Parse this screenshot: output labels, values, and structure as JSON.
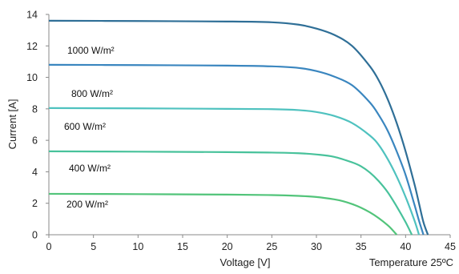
{
  "chart_data": {
    "type": "line",
    "title": "",
    "xlabel": "Voltage [V]",
    "ylabel": "Current [A]",
    "xlim": [
      0,
      45
    ],
    "ylim": [
      0,
      14
    ],
    "xticks": [
      "0",
      "5",
      "10",
      "15",
      "20",
      "25",
      "30",
      "35",
      "40",
      "45"
    ],
    "yticks": [
      "0",
      "2",
      "4",
      "6",
      "8",
      "10",
      "12",
      "14"
    ],
    "grid": false,
    "annotations": [
      {
        "text": "Temperature 25ºC",
        "placement": "bottom-right"
      }
    ],
    "series": [
      {
        "name": "1000 W/m²",
        "color": "#2f6f97",
        "isc": 13.6,
        "voc": 42.5,
        "x": [
          0,
          10,
          20,
          25,
          28,
          30,
          32,
          34,
          36,
          37,
          38,
          39,
          40,
          41,
          41.5,
          42,
          42.5
        ],
        "y": [
          13.6,
          13.58,
          13.55,
          13.5,
          13.35,
          13.1,
          12.7,
          12.0,
          10.7,
          9.8,
          8.6,
          7.1,
          5.3,
          3.2,
          2.0,
          0.8,
          0
        ]
      },
      {
        "name": "800 W/m²",
        "color": "#3a86bf",
        "isc": 10.8,
        "voc": 42.0,
        "x": [
          0,
          10,
          20,
          25,
          28,
          30,
          32,
          34,
          36,
          37,
          38,
          39,
          40,
          41,
          41.5,
          42
        ],
        "y": [
          10.8,
          10.78,
          10.75,
          10.7,
          10.6,
          10.4,
          10.05,
          9.5,
          8.4,
          7.6,
          6.6,
          5.3,
          3.8,
          1.9,
          0.9,
          0
        ]
      },
      {
        "name": "600 W/m²",
        "color": "#4fc2bf",
        "isc": 8.05,
        "voc": 41.5,
        "x": [
          0,
          10,
          20,
          25,
          28,
          30,
          32,
          34,
          36,
          37,
          38,
          39,
          40,
          41,
          41.5
        ],
        "y": [
          8.05,
          8.03,
          8.0,
          7.98,
          7.92,
          7.8,
          7.55,
          7.1,
          6.3,
          5.7,
          4.8,
          3.7,
          2.4,
          0.9,
          0
        ]
      },
      {
        "name": "400 W/m²",
        "color": "#48c29b",
        "isc": 5.3,
        "voc": 40.7,
        "x": [
          0,
          10,
          20,
          25,
          28,
          30,
          32,
          34,
          35,
          36,
          37,
          38,
          39,
          40,
          40.7
        ],
        "y": [
          5.3,
          5.28,
          5.25,
          5.22,
          5.18,
          5.1,
          4.95,
          4.6,
          4.35,
          3.95,
          3.4,
          2.7,
          1.8,
          0.8,
          0
        ]
      },
      {
        "name": "200 W/m²",
        "color": "#52c47a",
        "isc": 2.6,
        "voc": 39.0,
        "x": [
          0,
          10,
          20,
          25,
          28,
          30,
          32,
          33,
          34,
          35,
          36,
          37,
          38,
          38.5,
          39
        ],
        "y": [
          2.6,
          2.58,
          2.55,
          2.52,
          2.47,
          2.4,
          2.25,
          2.13,
          1.95,
          1.72,
          1.42,
          1.05,
          0.6,
          0.32,
          0
        ]
      }
    ],
    "series_labels": [
      "1000 W/m²",
      "800 W/m²",
      "600 W/m²",
      "400 W/m²",
      "200 W/m²"
    ]
  }
}
